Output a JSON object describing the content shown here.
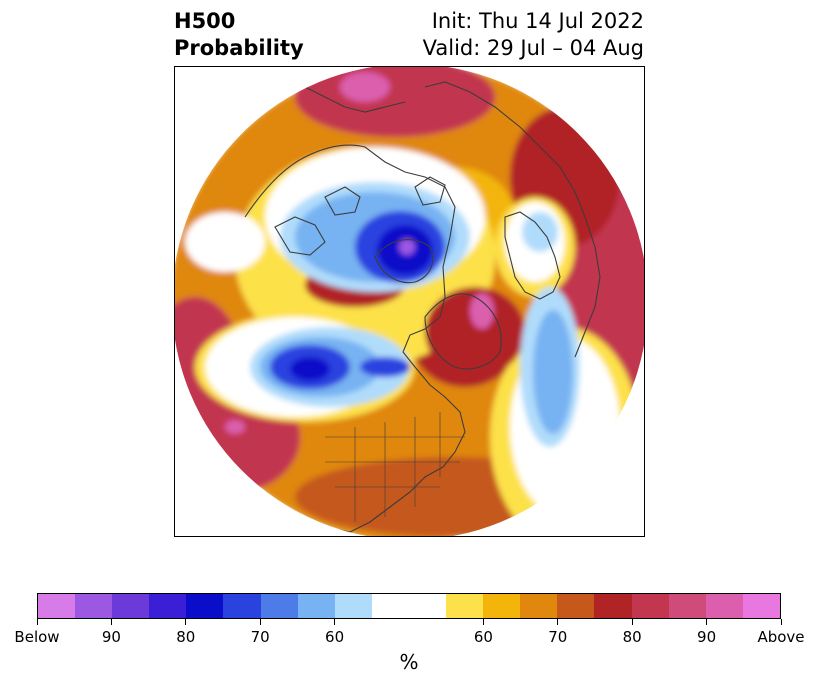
{
  "header": {
    "left_line1": "H500",
    "left_line2": "Probability",
    "right_line1": "Init: Thu 14 Jul 2022",
    "right_line2": "Valid: 29 Jul – 04 Aug"
  },
  "colorbar": {
    "unit": "%",
    "colors": [
      "#d77be8",
      "#9d58e3",
      "#6b3ad9",
      "#3a1fd6",
      "#0a0dc9",
      "#2a43df",
      "#4d7be8",
      "#77b2f2",
      "#b0dcfb",
      "#ffffff",
      "#ffffff",
      "#fde14a",
      "#f3b50a",
      "#e0870e",
      "#c5581a",
      "#b02426",
      "#c23650",
      "#cf4b7a",
      "#dc5fae",
      "#e878df"
    ],
    "tick_labels": [
      "Below",
      "90",
      "80",
      "70",
      "60",
      "60",
      "70",
      "80",
      "90",
      "Above"
    ]
  },
  "map": {
    "projection": "north polar stereographic",
    "field_colors": {
      "background": "#e0870e",
      "warm_outer": "#c23650",
      "warm_red": "#b02426",
      "warm_orange": "#c5581a",
      "warm_amber": "#f3b50a",
      "warm_yellow": "#fde14a",
      "neutral": "#ffffff",
      "cool_light": "#b0dcfb",
      "cool_mid": "#77b2f2",
      "cool_blue": "#2a43df",
      "cool_deep": "#0a0dc9",
      "cool_core": "#9d58e3",
      "warm_pink": "#dc5fae",
      "coastline": "#3c3c3c"
    }
  }
}
